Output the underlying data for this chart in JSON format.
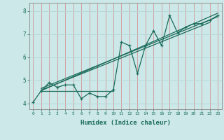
{
  "xlabel": "Humidex (Indice chaleur)",
  "bg_color": "#cce8e8",
  "line_color": "#1a6b5a",
  "grid_color_v": "#d4a0a0",
  "grid_color_h": "#b8d8d8",
  "xlim": [
    -0.5,
    23.5
  ],
  "ylim": [
    3.75,
    8.35
  ],
  "xticks": [
    0,
    1,
    2,
    3,
    4,
    5,
    6,
    7,
    8,
    9,
    10,
    11,
    12,
    13,
    14,
    15,
    16,
    17,
    18,
    19,
    20,
    21,
    22,
    23
  ],
  "yticks": [
    4,
    5,
    6,
    7,
    8
  ],
  "data_x": [
    0,
    1,
    2,
    3,
    4,
    5,
    6,
    7,
    8,
    9,
    10,
    11,
    12,
    13,
    14,
    15,
    16,
    17,
    18,
    19,
    20,
    21,
    22,
    23
  ],
  "data_y": [
    4.05,
    4.55,
    4.9,
    4.7,
    4.8,
    4.8,
    4.2,
    4.45,
    4.3,
    4.3,
    4.6,
    6.65,
    6.5,
    5.3,
    6.5,
    7.15,
    6.5,
    7.8,
    7.05,
    7.3,
    7.45,
    7.45,
    7.6,
    7.8
  ],
  "trend1_x": [
    1,
    22
  ],
  "trend1_y": [
    4.58,
    7.5
  ],
  "trend2_x": [
    1,
    23
  ],
  "trend2_y": [
    4.65,
    7.75
  ],
  "trend3_x": [
    1,
    23
  ],
  "trend3_y": [
    4.55,
    7.9
  ],
  "hline_x": [
    1,
    10
  ],
  "hline_y": [
    4.55,
    4.55
  ]
}
